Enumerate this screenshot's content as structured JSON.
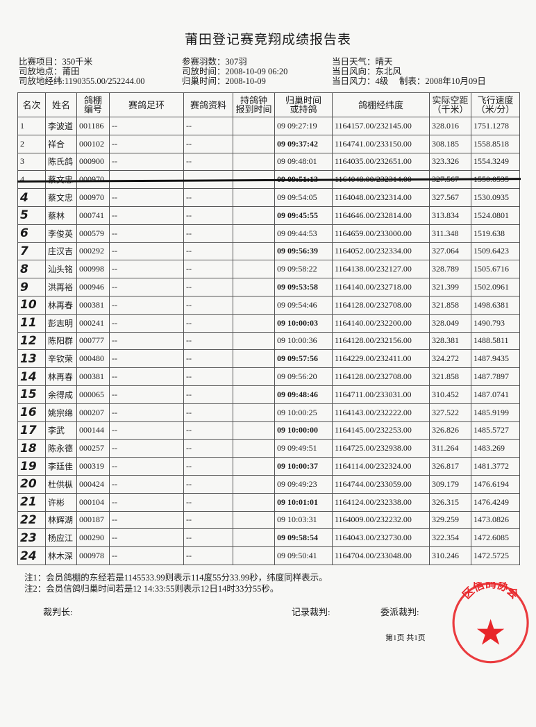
{
  "title": "莆田登记赛竞翔成绩报告表",
  "meta": {
    "col1": [
      "比赛项目：350千米",
      "司放地点：莆田",
      "司放地经纬:1190355.00/252244.00"
    ],
    "col2": [
      "参赛羽数：307羽",
      "司放时间：2008-10-09 06:20",
      "归巢时间：2008-10-09"
    ],
    "col3": [
      "当日天气：晴天",
      "当日风向：东北风",
      "当日风力：4级"
    ],
    "made": "制表：2008年10月09日"
  },
  "table": {
    "headers": [
      "名次",
      "姓名",
      "鸽棚\n编号",
      "赛鸽足环",
      "赛鸽资料",
      "持鸽钟\n报到时间",
      "归巢时间\n或持鸽",
      "鸽棚经纬度",
      "实际空距\n（千米）",
      "飞行速度\n（米/分）"
    ],
    "rows": [
      {
        "rank": "1",
        "name": "李波道",
        "id": "001186",
        "ring": "--",
        "info": "--",
        "clock": "",
        "time": "09 09:27:19",
        "coord": "1164157.00/232145.00",
        "dist": "328.016",
        "speed": "1751.1278"
      },
      {
        "rank": "2",
        "name": "祥合",
        "id": "000102",
        "ring": "--",
        "info": "--",
        "clock": "",
        "time": "09 09:37:42",
        "coord": "1164741.00/233150.00",
        "dist": "308.185",
        "speed": "1558.8518"
      },
      {
        "rank": "3",
        "name": "陈氏鸽",
        "id": "000900",
        "ring": "--",
        "info": "--",
        "clock": "",
        "time": "09 09:48:01",
        "coord": "1164035.00/232651.00",
        "dist": "323.326",
        "speed": "1554.3249"
      },
      {
        "rank": "4",
        "name": "蔡文忠",
        "id": "000970",
        "ring": "",
        "info": "",
        "clock": "",
        "time": "09 09:51:13",
        "coord": "1164048.00/232314.00",
        "dist": "327.567",
        "speed": "1550.0535",
        "struck": true
      },
      {
        "rank": "4",
        "name": "蔡文忠",
        "id": "000970",
        "ring": "--",
        "info": "--",
        "clock": "",
        "time": "09 09:54:05",
        "coord": "1164048.00/232314.00",
        "dist": "327.567",
        "speed": "1530.0935",
        "hand": true
      },
      {
        "rank": "5",
        "name": "蔡林",
        "id": "000741",
        "ring": "--",
        "info": "--",
        "clock": "",
        "time": "09 09:45:55",
        "coord": "1164646.00/232814.00",
        "dist": "313.834",
        "speed": "1524.0801",
        "hand": true
      },
      {
        "rank": "6",
        "name": "李俊英",
        "id": "000579",
        "ring": "--",
        "info": "--",
        "clock": "",
        "time": "09 09:44:53",
        "coord": "1164659.00/233000.00",
        "dist": "311.348",
        "speed": "1519.638",
        "hand": true
      },
      {
        "rank": "7",
        "name": "庄汉吉",
        "id": "000292",
        "ring": "--",
        "info": "--",
        "clock": "",
        "time": "09 09:56:39",
        "coord": "1164052.00/232334.00",
        "dist": "327.064",
        "speed": "1509.6423",
        "hand": true
      },
      {
        "rank": "8",
        "name": "汕头铭",
        "id": "000998",
        "ring": "--",
        "info": "--",
        "clock": "",
        "time": "09 09:58:22",
        "coord": "1164138.00/232127.00",
        "dist": "328.789",
        "speed": "1505.6716",
        "hand": true
      },
      {
        "rank": "9",
        "name": "洪再裕",
        "id": "000946",
        "ring": "--",
        "info": "--",
        "clock": "",
        "time": "09 09:53:58",
        "coord": "1164140.00/232718.00",
        "dist": "321.399",
        "speed": "1502.0961",
        "hand": true
      },
      {
        "rank": "10",
        "name": "林再春",
        "id": "000381",
        "ring": "--",
        "info": "--",
        "clock": "",
        "time": "09 09:54:46",
        "coord": "1164128.00/232708.00",
        "dist": "321.858",
        "speed": "1498.6381",
        "hand": true
      },
      {
        "rank": "11",
        "name": "彭志明",
        "id": "000241",
        "ring": "--",
        "info": "--",
        "clock": "",
        "time": "09 10:00:03",
        "coord": "1164140.00/232200.00",
        "dist": "328.049",
        "speed": "1490.793",
        "hand": true
      },
      {
        "rank": "12",
        "name": "陈阳群",
        "id": "000777",
        "ring": "--",
        "info": "--",
        "clock": "",
        "time": "09 10:00:36",
        "coord": "1164128.00/232156.00",
        "dist": "328.381",
        "speed": "1488.5811",
        "hand": true
      },
      {
        "rank": "13",
        "name": "辛钦荣",
        "id": "000480",
        "ring": "--",
        "info": "--",
        "clock": "",
        "time": "09 09:57:56",
        "coord": "1164229.00/232411.00",
        "dist": "324.272",
        "speed": "1487.9435",
        "hand": true
      },
      {
        "rank": "14",
        "name": "林再春",
        "id": "000381",
        "ring": "--",
        "info": "--",
        "clock": "",
        "time": "09 09:56:20",
        "coord": "1164128.00/232708.00",
        "dist": "321.858",
        "speed": "1487.7897",
        "hand": true
      },
      {
        "rank": "15",
        "name": "余得成",
        "id": "000065",
        "ring": "--",
        "info": "--",
        "clock": "",
        "time": "09 09:48:46",
        "coord": "1164711.00/233031.00",
        "dist": "310.452",
        "speed": "1487.0741",
        "hand": true
      },
      {
        "rank": "16",
        "name": "姚宗绵",
        "id": "000207",
        "ring": "--",
        "info": "--",
        "clock": "",
        "time": "09 10:00:25",
        "coord": "1164143.00/232222.00",
        "dist": "327.522",
        "speed": "1485.9199",
        "hand": true
      },
      {
        "rank": "17",
        "name": "李武",
        "id": "000144",
        "ring": "--",
        "info": "--",
        "clock": "",
        "time": "09 10:00:00",
        "coord": "1164145.00/232253.00",
        "dist": "326.826",
        "speed": "1485.5727",
        "hand": true
      },
      {
        "rank": "18",
        "name": "陈永德",
        "id": "000257",
        "ring": "--",
        "info": "--",
        "clock": "",
        "time": "09 09:49:51",
        "coord": "1164725.00/232938.00",
        "dist": "311.264",
        "speed": "1483.269",
        "hand": true
      },
      {
        "rank": "19",
        "name": "李廷佳",
        "id": "000319",
        "ring": "--",
        "info": "--",
        "clock": "",
        "time": "09 10:00:37",
        "coord": "1164114.00/232324.00",
        "dist": "326.817",
        "speed": "1481.3772",
        "hand": true
      },
      {
        "rank": "20",
        "name": "杜供枞",
        "id": "000424",
        "ring": "--",
        "info": "--",
        "clock": "",
        "time": "09 09:49:23",
        "coord": "1164744.00/233059.00",
        "dist": "309.179",
        "speed": "1476.6194",
        "hand": true
      },
      {
        "rank": "21",
        "name": "许彬",
        "id": "000104",
        "ring": "--",
        "info": "--",
        "clock": "",
        "time": "09 10:01:01",
        "coord": "1164124.00/232338.00",
        "dist": "326.315",
        "speed": "1476.4249",
        "hand": true
      },
      {
        "rank": "22",
        "name": "林辉湖",
        "id": "000187",
        "ring": "--",
        "info": "--",
        "clock": "",
        "time": "09 10:03:31",
        "coord": "1164009.00/232232.00",
        "dist": "329.259",
        "speed": "1473.0826",
        "hand": true
      },
      {
        "rank": "23",
        "name": "杨应江",
        "id": "000290",
        "ring": "--",
        "info": "--",
        "clock": "",
        "time": "09 09:58:54",
        "coord": "1164043.00/232730.00",
        "dist": "322.354",
        "speed": "1472.6085",
        "hand": true
      },
      {
        "rank": "24",
        "name": "林木深",
        "id": "000978",
        "ring": "--",
        "info": "--",
        "clock": "",
        "time": "09 09:50:41",
        "coord": "1164704.00/233048.00",
        "dist": "310.246",
        "speed": "1472.5725",
        "hand": true
      }
    ]
  },
  "notes": [
    "注1：会员鸽棚的东经若是1145533.99则表示114度55分33.99秒，纬度同样表示。",
    "注2：会员信鸽归巢时间若是12  14:33:55则表示12日14时33分55秒。"
  ],
  "signatures": {
    "chief": "裁判长:",
    "recorder": "记录裁判:",
    "delegate": "委派裁判:"
  },
  "page": "第1页 共1页",
  "seal": {
    "text": "区信鸽协会",
    "color": "#e8262a"
  }
}
